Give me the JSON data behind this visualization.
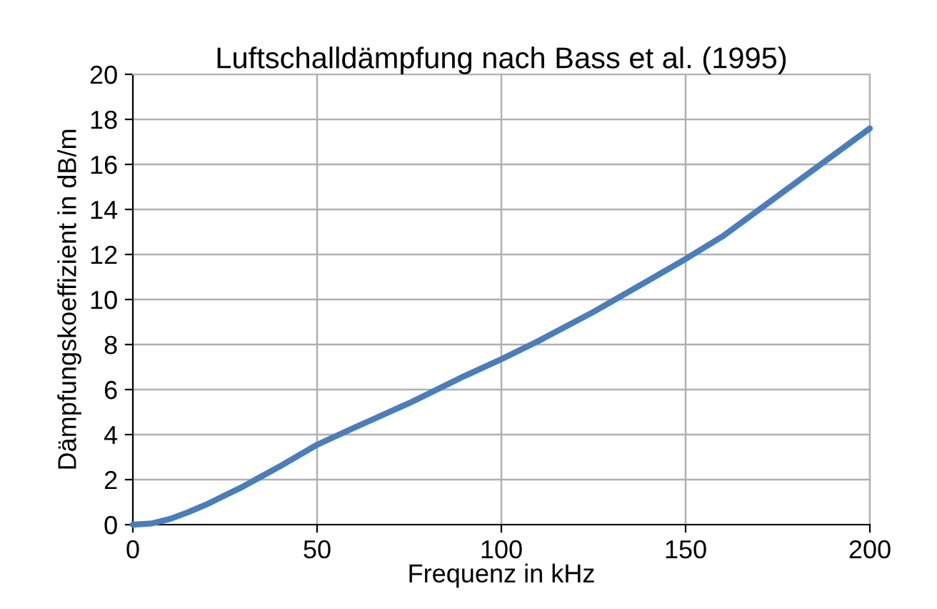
{
  "chart_data": {
    "type": "line",
    "title": "Luftschalldämpfung nach Bass et al. (1995)",
    "xlabel": "Frequenz in kHz",
    "ylabel": "Dämpfungskoeffizient in dB/m",
    "x": [
      0,
      5,
      10,
      15,
      20,
      25,
      30,
      35,
      40,
      50,
      60,
      75,
      90,
      100,
      110,
      125,
      140,
      150,
      160,
      175,
      190,
      200
    ],
    "series": [
      {
        "color": "#4a7ebb",
        "values": [
          0,
          0.05,
          0.25,
          0.55,
          0.9,
          1.3,
          1.7,
          2.15,
          2.6,
          3.55,
          4.3,
          5.4,
          6.6,
          7.35,
          8.15,
          9.45,
          10.85,
          11.8,
          12.8,
          14.6,
          16.4,
          17.6
        ]
      }
    ],
    "xlim": [
      0,
      200
    ],
    "ylim": [
      0,
      20
    ],
    "xticks": [
      0,
      50,
      100,
      150,
      200
    ],
    "yticks": [
      0,
      2,
      4,
      6,
      8,
      10,
      12,
      14,
      16,
      18,
      20
    ],
    "grid": true,
    "legend": false,
    "marker": "none",
    "line_style": "solid"
  }
}
